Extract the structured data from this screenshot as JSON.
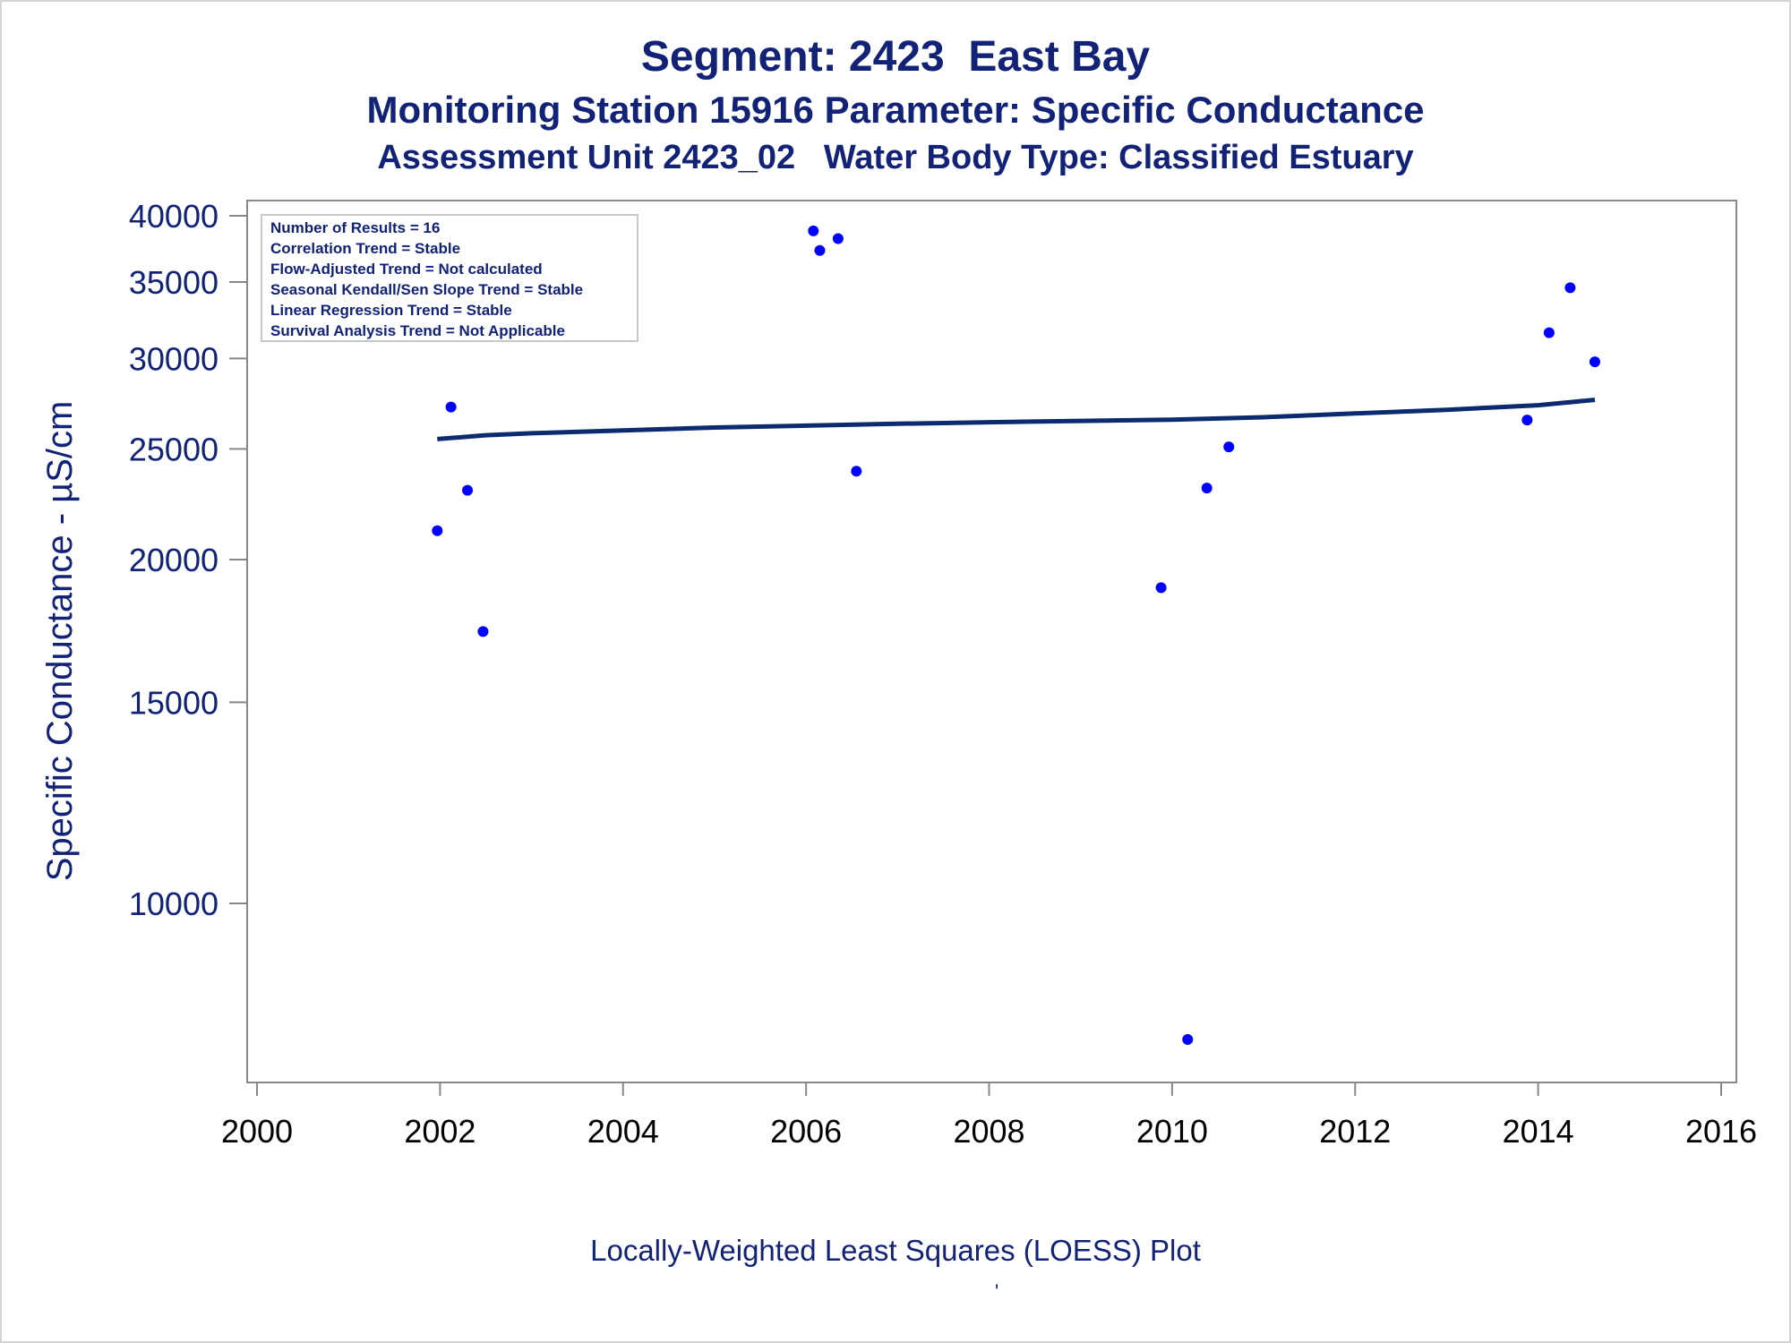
{
  "title": "Segment: 2423  East Bay",
  "subtitle1": "Monitoring Station 15916 Parameter: Specific Conductance",
  "subtitle2": "Assessment Unit 2423_02   Water Body Type: Classified Estuary",
  "footnote": "Locally-Weighted Least Squares (LOESS) Plot",
  "tick_glyph": "'",
  "colors": {
    "text": "#112277",
    "points": "#0000ff",
    "trend_line": "#0b2a6f",
    "axis": "#888888"
  },
  "chart_data": {
    "type": "scatter",
    "xlabel": "",
    "ylabel": "Specific Conductance -  µS/cm",
    "xlim": [
      2000,
      2016
    ],
    "ylim": [
      7500,
      40000
    ],
    "yscale": "log",
    "x_ticks": [
      2000,
      2002,
      2004,
      2006,
      2008,
      2010,
      2012,
      2014,
      2016
    ],
    "y_ticks": [
      10000,
      15000,
      20000,
      25000,
      30000,
      35000,
      40000
    ],
    "grid": false,
    "legend": "none",
    "stats_box": [
      "Number of Results = 16",
      "Correlation Trend = Stable",
      "Flow-Adjusted Trend = Not calculated",
      "Seasonal Kendall/Sen Slope Trend = Stable",
      "Linear Regression Trend = Stable",
      "Survival Analysis Trend = Not Applicable"
    ],
    "points": [
      {
        "x": 2001.97,
        "y": 21200
      },
      {
        "x": 2002.12,
        "y": 27200
      },
      {
        "x": 2002.3,
        "y": 23000
      },
      {
        "x": 2002.47,
        "y": 17300
      },
      {
        "x": 2006.08,
        "y": 38800
      },
      {
        "x": 2006.15,
        "y": 37300
      },
      {
        "x": 2006.35,
        "y": 38200
      },
      {
        "x": 2006.55,
        "y": 23900
      },
      {
        "x": 2009.88,
        "y": 18900
      },
      {
        "x": 2010.17,
        "y": 7600
      },
      {
        "x": 2010.38,
        "y": 23100
      },
      {
        "x": 2010.62,
        "y": 25100
      },
      {
        "x": 2013.88,
        "y": 26500
      },
      {
        "x": 2014.12,
        "y": 31600
      },
      {
        "x": 2014.35,
        "y": 34600
      },
      {
        "x": 2014.62,
        "y": 29800
      }
    ],
    "loess": [
      {
        "x": 2001.97,
        "y": 25500
      },
      {
        "x": 2002.5,
        "y": 25700
      },
      {
        "x": 2003.0,
        "y": 25800
      },
      {
        "x": 2004.0,
        "y": 25950
      },
      {
        "x": 2005.0,
        "y": 26100
      },
      {
        "x": 2006.0,
        "y": 26200
      },
      {
        "x": 2007.0,
        "y": 26300
      },
      {
        "x": 2008.0,
        "y": 26380
      },
      {
        "x": 2009.0,
        "y": 26450
      },
      {
        "x": 2010.0,
        "y": 26520
      },
      {
        "x": 2011.0,
        "y": 26650
      },
      {
        "x": 2012.0,
        "y": 26850
      },
      {
        "x": 2013.0,
        "y": 27050
      },
      {
        "x": 2014.0,
        "y": 27300
      },
      {
        "x": 2014.62,
        "y": 27600
      }
    ]
  }
}
